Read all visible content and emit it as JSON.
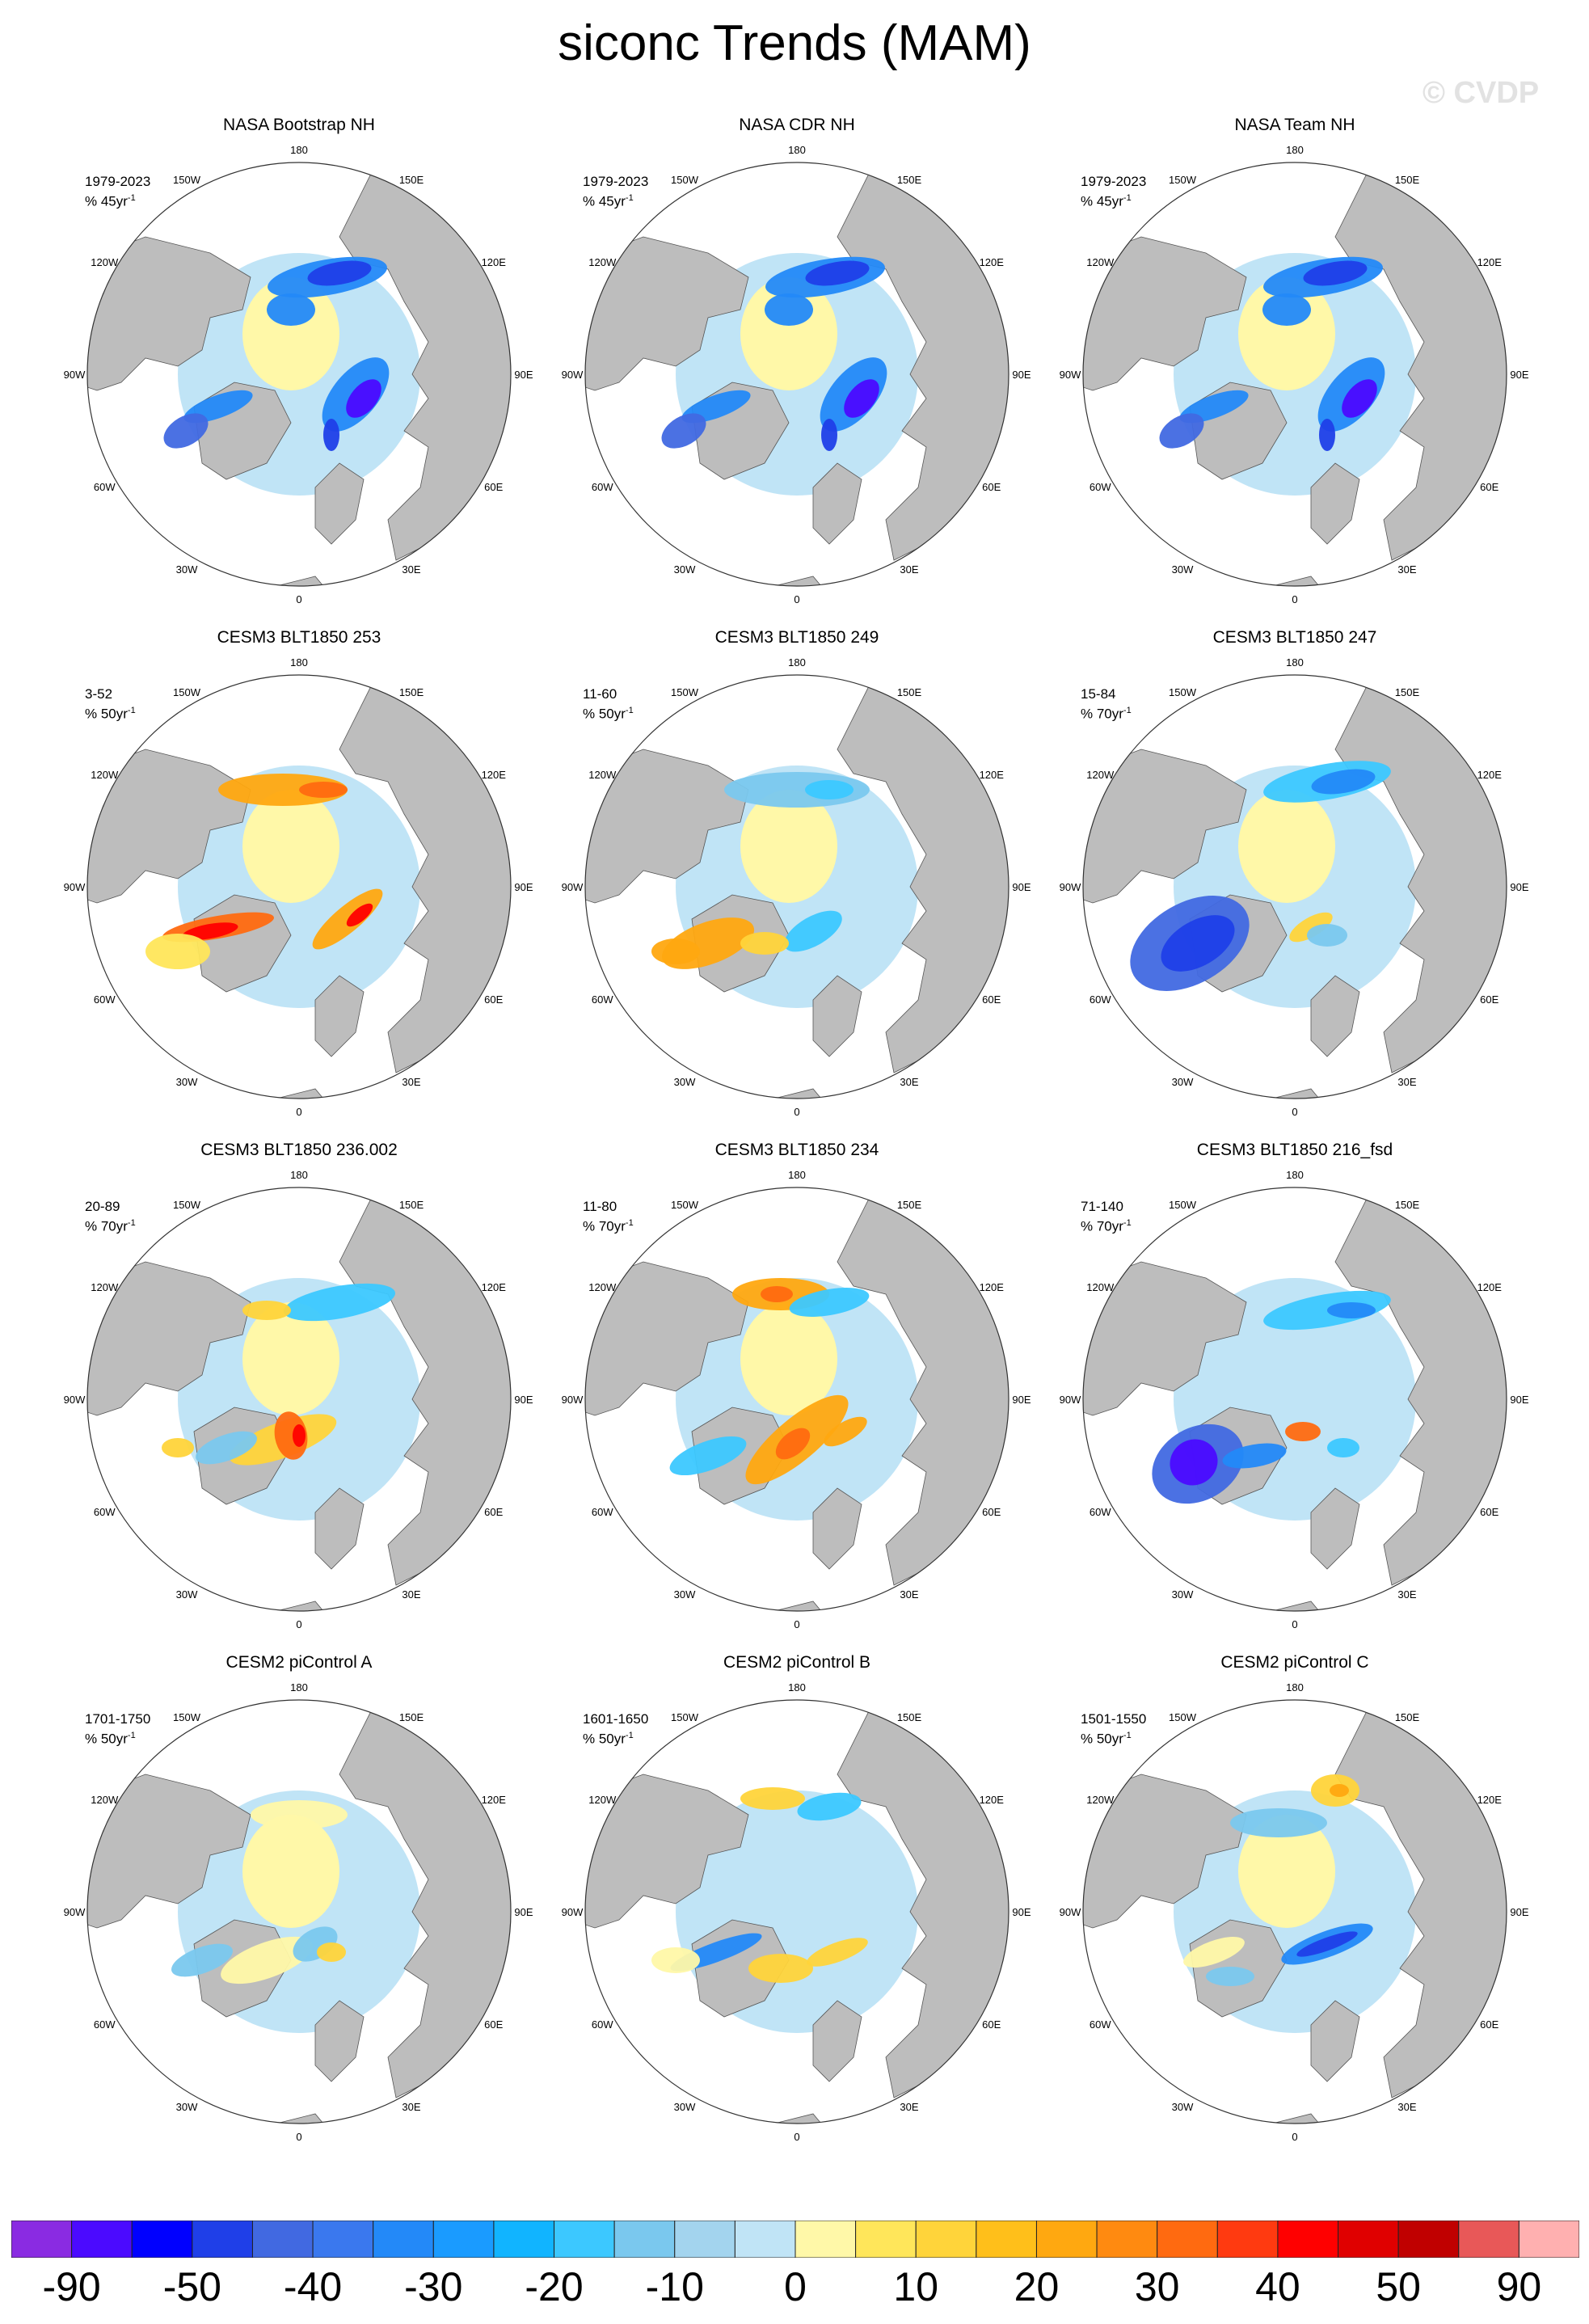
{
  "title": "siconc Trends (MAM)",
  "watermark": "© CVDP",
  "longitude_labels": [
    "180",
    "150E",
    "120E",
    "90E",
    "60E",
    "30E",
    "0",
    "30W",
    "60W",
    "90W",
    "120W",
    "150W"
  ],
  "panels": [
    {
      "title": "NASA Bootstrap NH",
      "period": "1979-2023",
      "units": "% 45yr",
      "units_exp": "-1",
      "pattern": "obs"
    },
    {
      "title": "NASA CDR NH",
      "period": "1979-2023",
      "units": "% 45yr",
      "units_exp": "-1",
      "pattern": "obs"
    },
    {
      "title": "NASA Team NH",
      "period": "1979-2023",
      "units": "% 45yr",
      "units_exp": "-1",
      "pattern": "obs"
    },
    {
      "title": "CESM3 BLT1850 253",
      "period": "3-52",
      "units": "% 50yr",
      "units_exp": "-1",
      "pattern": "warm"
    },
    {
      "title": "CESM3 BLT1850 249",
      "period": "11-60",
      "units": "% 50yr",
      "units_exp": "-1",
      "pattern": "mixed"
    },
    {
      "title": "CESM3 BLT1850 247",
      "period": "15-84",
      "units": "% 70yr",
      "units_exp": "-1",
      "pattern": "cold"
    },
    {
      "title": "CESM3 BLT1850 236.002",
      "period": "20-89",
      "units": "% 70yr",
      "units_exp": "-1",
      "pattern": "warm2"
    },
    {
      "title": "CESM3 BLT1850 234",
      "period": "11-80",
      "units": "% 70yr",
      "units_exp": "-1",
      "pattern": "warm3"
    },
    {
      "title": "CESM3 BLT1850 216_fsd",
      "period": "71-140",
      "units": "% 70yr",
      "units_exp": "-1",
      "pattern": "cold2"
    },
    {
      "title": "CESM2 piControl A",
      "period": "1701-1750",
      "units": "% 50yr",
      "units_exp": "-1",
      "pattern": "weak"
    },
    {
      "title": "CESM2 piControl B",
      "period": "1601-1650",
      "units": "% 50yr",
      "units_exp": "-1",
      "pattern": "mixed2"
    },
    {
      "title": "CESM2 piControl C",
      "period": "1501-1550",
      "units": "% 50yr",
      "units_exp": "-1",
      "pattern": "mixed3"
    }
  ],
  "colorbar": {
    "colors": [
      "#8a2be2",
      "#4b0aff",
      "#0000ff",
      "#1f3fe8",
      "#4169e1",
      "#3a78ee",
      "#2389f8",
      "#1a9bff",
      "#11b4ff",
      "#3cc8ff",
      "#7ac8ee",
      "#a3d4ee",
      "#c0e4f6",
      "#fff8a8",
      "#ffe65a",
      "#ffd43a",
      "#ffbf1a",
      "#ffa810",
      "#ff8a10",
      "#ff6a10",
      "#ff3a10",
      "#ff0000",
      "#e00000",
      "#c00000",
      "#e85858",
      "#ffb0b0"
    ],
    "labels": [
      "-90",
      "-50",
      "-40",
      "-30",
      "-20",
      "-10",
      "0",
      "10",
      "20",
      "30",
      "40",
      "50",
      "90"
    ]
  }
}
